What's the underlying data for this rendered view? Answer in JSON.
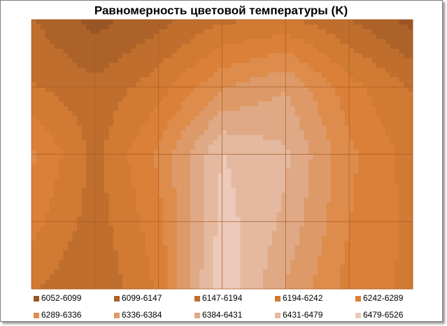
{
  "chart_data": {
    "type": "contour",
    "title": "Равномерность цветовой температуры (K)",
    "levels": [
      6052,
      6099,
      6147,
      6194,
      6242,
      6289,
      6336,
      6384,
      6431,
      6479,
      6526
    ],
    "bands": [
      {
        "name": "6052-6099",
        "color": "#985626"
      },
      {
        "name": "6099-6147",
        "color": "#ac6228"
      },
      {
        "name": "6147-6194",
        "color": "#bf6e2d"
      },
      {
        "name": "6194-6242",
        "color": "#d07a33"
      },
      {
        "name": "6242-6289",
        "color": "#da8038"
      },
      {
        "name": "6289-6336",
        "color": "#de8c4c"
      },
      {
        "name": "6336-6384",
        "color": "#dd9a68"
      },
      {
        "name": "6384-6431",
        "color": "#dfa986"
      },
      {
        "name": "6431-6479",
        "color": "#e4b9a0"
      },
      {
        "name": "6479-6526",
        "color": "#ecc9b8"
      }
    ],
    "grid_values": [
      [
        6150,
        6080,
        6130,
        6185,
        6205,
        6150,
        6080
      ],
      [
        6200,
        6160,
        6220,
        6330,
        6380,
        6260,
        6190
      ],
      [
        6300,
        6180,
        6300,
        6480,
        6440,
        6300,
        6220
      ],
      [
        6260,
        6170,
        6270,
        6500,
        6420,
        6290,
        6230
      ],
      [
        6200,
        6150,
        6250,
        6520,
        6380,
        6270,
        6230
      ]
    ],
    "grid": true
  }
}
